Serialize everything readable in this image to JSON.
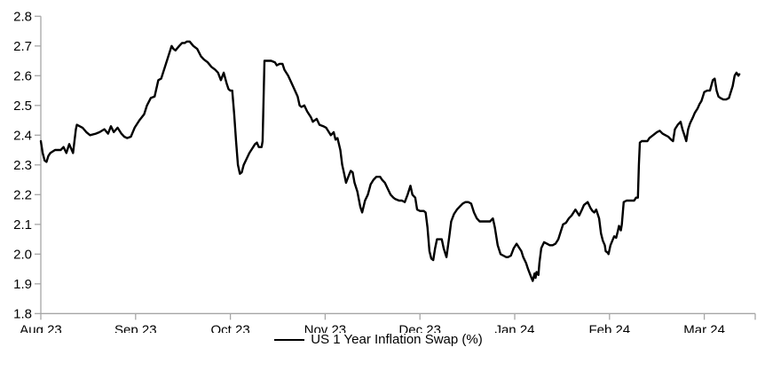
{
  "chart_data": {
    "type": "line",
    "title": "",
    "grid": false,
    "legend": {
      "position": "bottom-center",
      "entries": [
        "US 1 Year Inflation Swap (%)"
      ]
    },
    "x_axis": {
      "unit": "months (0 = Aug 23 tick)",
      "tick_labels": [
        "Aug 23",
        "Sep 23",
        "Oct 23",
        "Nov 23",
        "Dec 23",
        "Jan 24",
        "Feb 24",
        "Mar 24"
      ],
      "range": [
        0,
        7.53
      ]
    },
    "y_axis": {
      "label": "",
      "ticks": [
        1.8,
        1.9,
        2.0,
        2.1,
        2.2,
        2.3,
        2.4,
        2.5,
        2.6,
        2.7,
        2.8
      ],
      "range": [
        1.8,
        2.8
      ]
    },
    "colors": {
      "line": "#000000",
      "axis": "#a6a6a6",
      "text": "#000000",
      "background": "#ffffff"
    },
    "series": [
      {
        "name": "US 1 Year Inflation Swap (%)",
        "points": [
          [
            0.0,
            2.38
          ],
          [
            0.02,
            2.34
          ],
          [
            0.04,
            2.315
          ],
          [
            0.06,
            2.31
          ],
          [
            0.08,
            2.33
          ],
          [
            0.1,
            2.34
          ],
          [
            0.15,
            2.35
          ],
          [
            0.21,
            2.35
          ],
          [
            0.24,
            2.36
          ],
          [
            0.27,
            2.34
          ],
          [
            0.3,
            2.37
          ],
          [
            0.34,
            2.34
          ],
          [
            0.37,
            2.42
          ],
          [
            0.38,
            2.435
          ],
          [
            0.44,
            2.425
          ],
          [
            0.48,
            2.41
          ],
          [
            0.52,
            2.4
          ],
          [
            0.58,
            2.405
          ],
          [
            0.62,
            2.41
          ],
          [
            0.67,
            2.42
          ],
          [
            0.71,
            2.405
          ],
          [
            0.74,
            2.43
          ],
          [
            0.77,
            2.41
          ],
          [
            0.81,
            2.425
          ],
          [
            0.85,
            2.405
          ],
          [
            0.88,
            2.395
          ],
          [
            0.91,
            2.39
          ],
          [
            0.95,
            2.395
          ],
          [
            0.99,
            2.425
          ],
          [
            1.04,
            2.45
          ],
          [
            1.09,
            2.47
          ],
          [
            1.12,
            2.5
          ],
          [
            1.16,
            2.525
          ],
          [
            1.2,
            2.53
          ],
          [
            1.24,
            2.585
          ],
          [
            1.27,
            2.59
          ],
          [
            1.31,
            2.63
          ],
          [
            1.35,
            2.67
          ],
          [
            1.38,
            2.7
          ],
          [
            1.4,
            2.69
          ],
          [
            1.42,
            2.685
          ],
          [
            1.46,
            2.7
          ],
          [
            1.49,
            2.71
          ],
          [
            1.52,
            2.71
          ],
          [
            1.54,
            2.715
          ],
          [
            1.57,
            2.715
          ],
          [
            1.61,
            2.7
          ],
          [
            1.65,
            2.69
          ],
          [
            1.69,
            2.665
          ],
          [
            1.72,
            2.655
          ],
          [
            1.76,
            2.645
          ],
          [
            1.8,
            2.63
          ],
          [
            1.84,
            2.62
          ],
          [
            1.87,
            2.61
          ],
          [
            1.9,
            2.585
          ],
          [
            1.93,
            2.61
          ],
          [
            1.96,
            2.575
          ],
          [
            1.98,
            2.555
          ],
          [
            2.0,
            2.55
          ],
          [
            2.02,
            2.55
          ],
          [
            2.04,
            2.47
          ],
          [
            2.06,
            2.38
          ],
          [
            2.08,
            2.3
          ],
          [
            2.1,
            2.27
          ],
          [
            2.12,
            2.275
          ],
          [
            2.14,
            2.3
          ],
          [
            2.17,
            2.32
          ],
          [
            2.2,
            2.34
          ],
          [
            2.23,
            2.355
          ],
          [
            2.26,
            2.37
          ],
          [
            2.28,
            2.375
          ],
          [
            2.3,
            2.36
          ],
          [
            2.33,
            2.36
          ],
          [
            2.34,
            2.38
          ],
          [
            2.36,
            2.65
          ],
          [
            2.4,
            2.65
          ],
          [
            2.43,
            2.65
          ],
          [
            2.47,
            2.645
          ],
          [
            2.49,
            2.635
          ],
          [
            2.52,
            2.64
          ],
          [
            2.55,
            2.64
          ],
          [
            2.57,
            2.62
          ],
          [
            2.61,
            2.6
          ],
          [
            2.66,
            2.565
          ],
          [
            2.71,
            2.53
          ],
          [
            2.73,
            2.5
          ],
          [
            2.75,
            2.495
          ],
          [
            2.78,
            2.5
          ],
          [
            2.81,
            2.48
          ],
          [
            2.85,
            2.46
          ],
          [
            2.87,
            2.445
          ],
          [
            2.91,
            2.455
          ],
          [
            2.94,
            2.435
          ],
          [
            2.98,
            2.43
          ],
          [
            3.01,
            2.425
          ],
          [
            3.03,
            2.415
          ],
          [
            3.06,
            2.4
          ],
          [
            3.09,
            2.41
          ],
          [
            3.11,
            2.385
          ],
          [
            3.13,
            2.39
          ],
          [
            3.16,
            2.35
          ],
          [
            3.18,
            2.3
          ],
          [
            3.2,
            2.27
          ],
          [
            3.22,
            2.24
          ],
          [
            3.25,
            2.265
          ],
          [
            3.27,
            2.28
          ],
          [
            3.29,
            2.275
          ],
          [
            3.31,
            2.24
          ],
          [
            3.34,
            2.21
          ],
          [
            3.37,
            2.16
          ],
          [
            3.39,
            2.14
          ],
          [
            3.42,
            2.18
          ],
          [
            3.45,
            2.2
          ],
          [
            3.48,
            2.235
          ],
          [
            3.51,
            2.25
          ],
          [
            3.54,
            2.26
          ],
          [
            3.58,
            2.26
          ],
          [
            3.6,
            2.25
          ],
          [
            3.63,
            2.24
          ],
          [
            3.66,
            2.22
          ],
          [
            3.69,
            2.2
          ],
          [
            3.72,
            2.19
          ],
          [
            3.74,
            2.185
          ],
          [
            3.78,
            2.18
          ],
          [
            3.81,
            2.18
          ],
          [
            3.84,
            2.175
          ],
          [
            3.87,
            2.2
          ],
          [
            3.9,
            2.23
          ],
          [
            3.92,
            2.2
          ],
          [
            3.95,
            2.19
          ],
          [
            3.97,
            2.15
          ],
          [
            4.0,
            2.145
          ],
          [
            4.04,
            2.145
          ],
          [
            4.06,
            2.14
          ],
          [
            4.08,
            2.09
          ],
          [
            4.1,
            2.01
          ],
          [
            4.12,
            1.985
          ],
          [
            4.14,
            1.98
          ],
          [
            4.16,
            2.02
          ],
          [
            4.18,
            2.05
          ],
          [
            4.2,
            2.05
          ],
          [
            4.23,
            2.05
          ],
          [
            4.25,
            2.02
          ],
          [
            4.27,
            2.0
          ],
          [
            4.28,
            1.99
          ],
          [
            4.31,
            2.06
          ],
          [
            4.33,
            2.11
          ],
          [
            4.36,
            2.135
          ],
          [
            4.39,
            2.15
          ],
          [
            4.42,
            2.16
          ],
          [
            4.45,
            2.17
          ],
          [
            4.48,
            2.175
          ],
          [
            4.51,
            2.175
          ],
          [
            4.54,
            2.17
          ],
          [
            4.57,
            2.14
          ],
          [
            4.6,
            2.12
          ],
          [
            4.63,
            2.11
          ],
          [
            4.66,
            2.11
          ],
          [
            4.7,
            2.11
          ],
          [
            4.74,
            2.11
          ],
          [
            4.77,
            2.12
          ],
          [
            4.79,
            2.09
          ],
          [
            4.82,
            2.03
          ],
          [
            4.85,
            2.0
          ],
          [
            4.88,
            1.995
          ],
          [
            4.91,
            1.99
          ],
          [
            4.93,
            1.99
          ],
          [
            4.96,
            1.995
          ],
          [
            4.99,
            2.02
          ],
          [
            5.02,
            2.035
          ],
          [
            5.05,
            2.02
          ],
          [
            5.07,
            2.01
          ],
          [
            5.09,
            1.99
          ],
          [
            5.12,
            1.97
          ],
          [
            5.14,
            1.95
          ],
          [
            5.17,
            1.925
          ],
          [
            5.19,
            1.91
          ],
          [
            5.21,
            1.935
          ],
          [
            5.22,
            1.92
          ],
          [
            5.23,
            1.94
          ],
          [
            5.25,
            1.93
          ],
          [
            5.26,
            1.97
          ],
          [
            5.28,
            2.02
          ],
          [
            5.31,
            2.04
          ],
          [
            5.34,
            2.035
          ],
          [
            5.37,
            2.03
          ],
          [
            5.4,
            2.03
          ],
          [
            5.43,
            2.035
          ],
          [
            5.46,
            2.05
          ],
          [
            5.49,
            2.08
          ],
          [
            5.51,
            2.1
          ],
          [
            5.54,
            2.105
          ],
          [
            5.57,
            2.12
          ],
          [
            5.6,
            2.13
          ],
          [
            5.64,
            2.15
          ],
          [
            5.66,
            2.14
          ],
          [
            5.68,
            2.13
          ],
          [
            5.71,
            2.15
          ],
          [
            5.73,
            2.165
          ],
          [
            5.77,
            2.175
          ],
          [
            5.8,
            2.155
          ],
          [
            5.82,
            2.145
          ],
          [
            5.84,
            2.14
          ],
          [
            5.86,
            2.15
          ],
          [
            5.89,
            2.12
          ],
          [
            5.91,
            2.07
          ],
          [
            5.93,
            2.045
          ],
          [
            5.95,
            2.03
          ],
          [
            5.96,
            2.01
          ],
          [
            5.98,
            2.005
          ],
          [
            5.99,
            2.0
          ],
          [
            6.01,
            2.03
          ],
          [
            6.03,
            2.045
          ],
          [
            6.05,
            2.06
          ],
          [
            6.07,
            2.055
          ],
          [
            6.09,
            2.08
          ],
          [
            6.1,
            2.095
          ],
          [
            6.12,
            2.08
          ],
          [
            6.13,
            2.1
          ],
          [
            6.15,
            2.175
          ],
          [
            6.18,
            2.18
          ],
          [
            6.21,
            2.18
          ],
          [
            6.24,
            2.18
          ],
          [
            6.26,
            2.18
          ],
          [
            6.28,
            2.19
          ],
          [
            6.3,
            2.19
          ],
          [
            6.31,
            2.3
          ],
          [
            6.32,
            2.375
          ],
          [
            6.34,
            2.38
          ],
          [
            6.37,
            2.38
          ],
          [
            6.4,
            2.38
          ],
          [
            6.42,
            2.39
          ],
          [
            6.46,
            2.4
          ],
          [
            6.5,
            2.41
          ],
          [
            6.53,
            2.415
          ],
          [
            6.56,
            2.405
          ],
          [
            6.59,
            2.4
          ],
          [
            6.62,
            2.395
          ],
          [
            6.65,
            2.385
          ],
          [
            6.67,
            2.38
          ],
          [
            6.69,
            2.42
          ],
          [
            6.72,
            2.435
          ],
          [
            6.75,
            2.445
          ],
          [
            6.77,
            2.42
          ],
          [
            6.79,
            2.4
          ],
          [
            6.81,
            2.38
          ],
          [
            6.83,
            2.42
          ],
          [
            6.85,
            2.44
          ],
          [
            6.88,
            2.46
          ],
          [
            6.9,
            2.475
          ],
          [
            6.93,
            2.49
          ],
          [
            6.95,
            2.505
          ],
          [
            6.97,
            2.515
          ],
          [
            6.98,
            2.525
          ],
          [
            7.0,
            2.545
          ],
          [
            7.03,
            2.55
          ],
          [
            7.06,
            2.55
          ],
          [
            7.09,
            2.585
          ],
          [
            7.11,
            2.59
          ],
          [
            7.13,
            2.55
          ],
          [
            7.15,
            2.53
          ],
          [
            7.17,
            2.525
          ],
          [
            7.2,
            2.52
          ],
          [
            7.23,
            2.52
          ],
          [
            7.26,
            2.525
          ],
          [
            7.27,
            2.535
          ],
          [
            7.3,
            2.565
          ],
          [
            7.32,
            2.6
          ],
          [
            7.34,
            2.61
          ],
          [
            7.36,
            2.6
          ],
          [
            7.37,
            2.605
          ]
        ]
      }
    ]
  }
}
